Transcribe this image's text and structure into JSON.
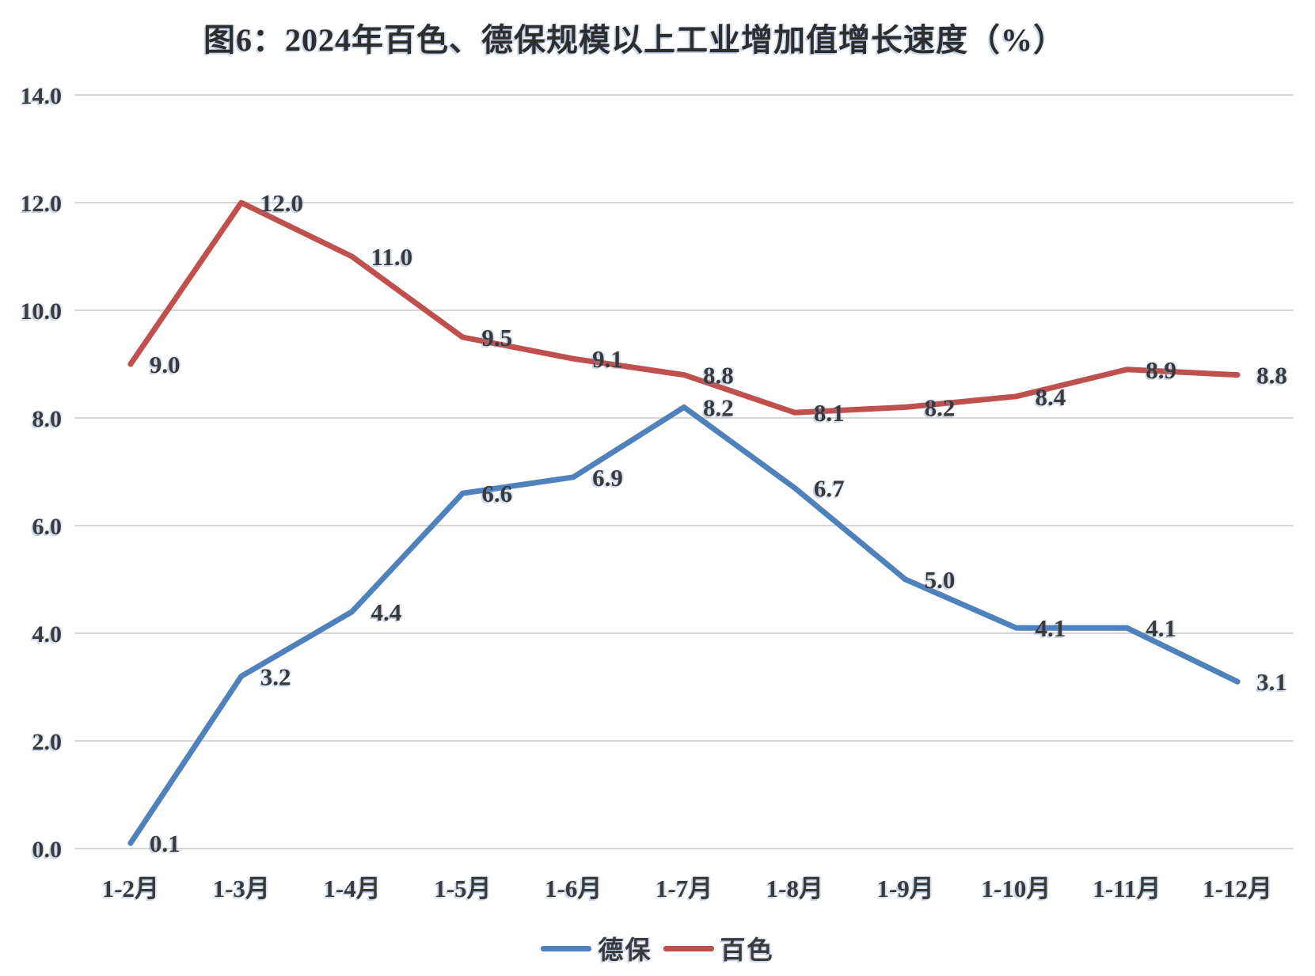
{
  "chart_data": {
    "type": "line",
    "title": "图6：2024年百色、德保规模以上工业增加值增长速度（%）",
    "categories": [
      "1-2月",
      "1-3月",
      "1-4月",
      "1-5月",
      "1-6月",
      "1-7月",
      "1-8月",
      "1-9月",
      "1-10月",
      "1-11月",
      "1-12月"
    ],
    "series": [
      {
        "name": "德保",
        "color": "#4F81BD",
        "values": [
          0.1,
          3.2,
          4.4,
          6.6,
          6.9,
          8.2,
          6.7,
          5.0,
          4.1,
          4.1,
          3.1
        ]
      },
      {
        "name": "百色",
        "color": "#C0504D",
        "values": [
          9.0,
          12.0,
          11.0,
          9.5,
          9.1,
          8.8,
          8.1,
          8.2,
          8.4,
          8.9,
          8.8
        ]
      }
    ],
    "ylim": [
      0,
      14
    ],
    "ytick_step": 2,
    "y_tick_labels": [
      "0.0",
      "2.0",
      "4.0",
      "6.0",
      "8.0",
      "10.0",
      "12.0",
      "14.0"
    ],
    "xlabel": "",
    "ylabel": "",
    "grid": true,
    "data_labels": true,
    "data_label_decimals": 1,
    "legend_position": "bottom",
    "colors": {
      "gridline": "#D6D6D6",
      "label_text": "#3A3A3A"
    }
  }
}
